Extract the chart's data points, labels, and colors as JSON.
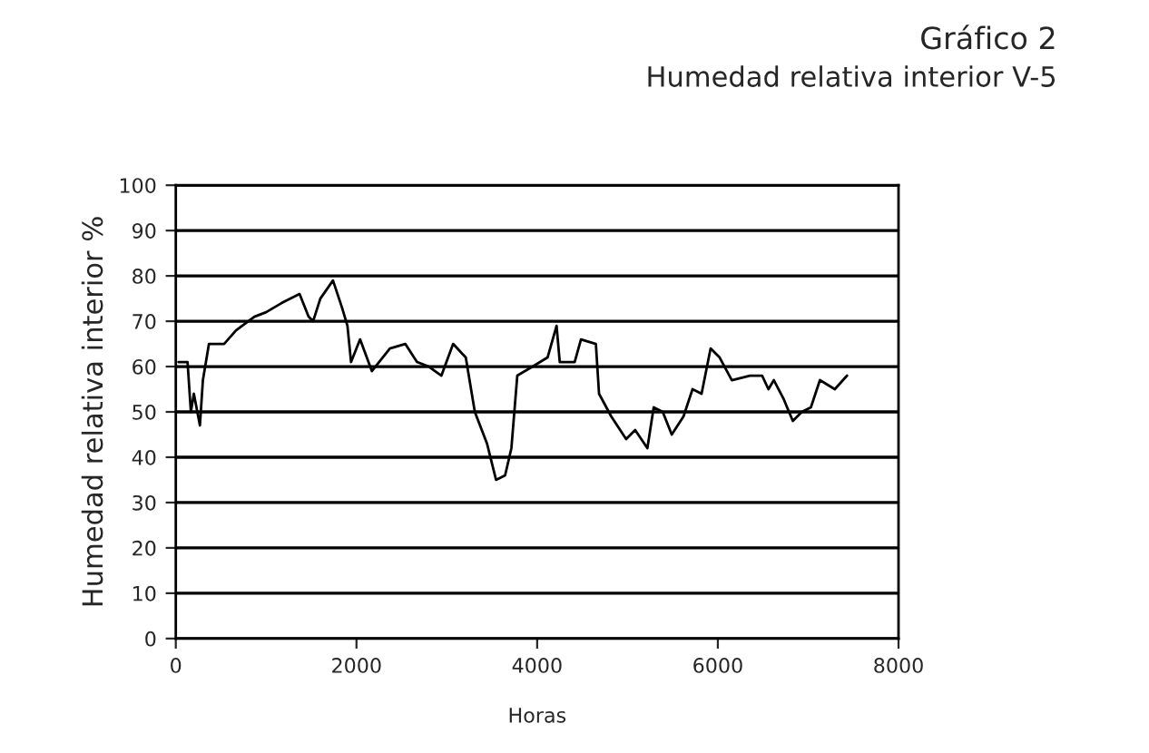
{
  "chart_data": {
    "type": "line",
    "title": "Gráfico 2",
    "subtitle": "Humedad relativa interior V-5",
    "xlabel": "Horas",
    "ylabel": "Humedad relativa interior %",
    "xlim": [
      0,
      8000
    ],
    "xticks": [
      0,
      2000,
      4000,
      6000,
      8000
    ],
    "ylim": [
      0,
      100
    ],
    "yticks": [
      0,
      10,
      20,
      30,
      40,
      50,
      60,
      70,
      80,
      90,
      100
    ],
    "grid": "y",
    "marker": "none",
    "line_style": "solid",
    "series": [
      {
        "color": "#000000",
        "x": [
          30,
          130,
          167,
          200,
          267,
          300,
          367,
          535,
          667,
          870,
          1000,
          1170,
          1370,
          1470,
          1520,
          1600,
          1740,
          1840,
          1900,
          1940,
          2040,
          2170,
          2370,
          2540,
          2670,
          2800,
          2940,
          3070,
          3210,
          3310,
          3445,
          3545,
          3645,
          3715,
          3780,
          3950,
          4115,
          4215,
          4250,
          4415,
          4485,
          4650,
          4685,
          4820,
          4985,
          5085,
          5220,
          5290,
          5390,
          5490,
          5620,
          5720,
          5820,
          5920,
          6020,
          6155,
          6355,
          6490,
          6560,
          6620,
          6725,
          6830,
          6930,
          7030,
          7130,
          7295,
          7430
        ],
        "values": [
          61,
          61,
          50,
          54,
          47,
          57,
          65,
          65,
          68,
          71,
          72,
          74,
          76,
          71,
          70,
          75,
          79,
          73,
          69,
          61,
          66,
          59,
          64,
          65,
          61,
          60,
          58,
          65,
          62,
          50,
          43,
          35,
          36,
          42,
          58,
          60,
          62,
          69,
          61,
          61,
          66,
          65,
          54,
          49,
          44,
          46,
          42,
          51,
          50,
          45,
          49,
          55,
          54,
          64,
          62,
          57,
          58,
          58,
          55,
          57,
          53,
          48,
          50,
          51,
          57,
          55,
          58
        ]
      }
    ]
  }
}
